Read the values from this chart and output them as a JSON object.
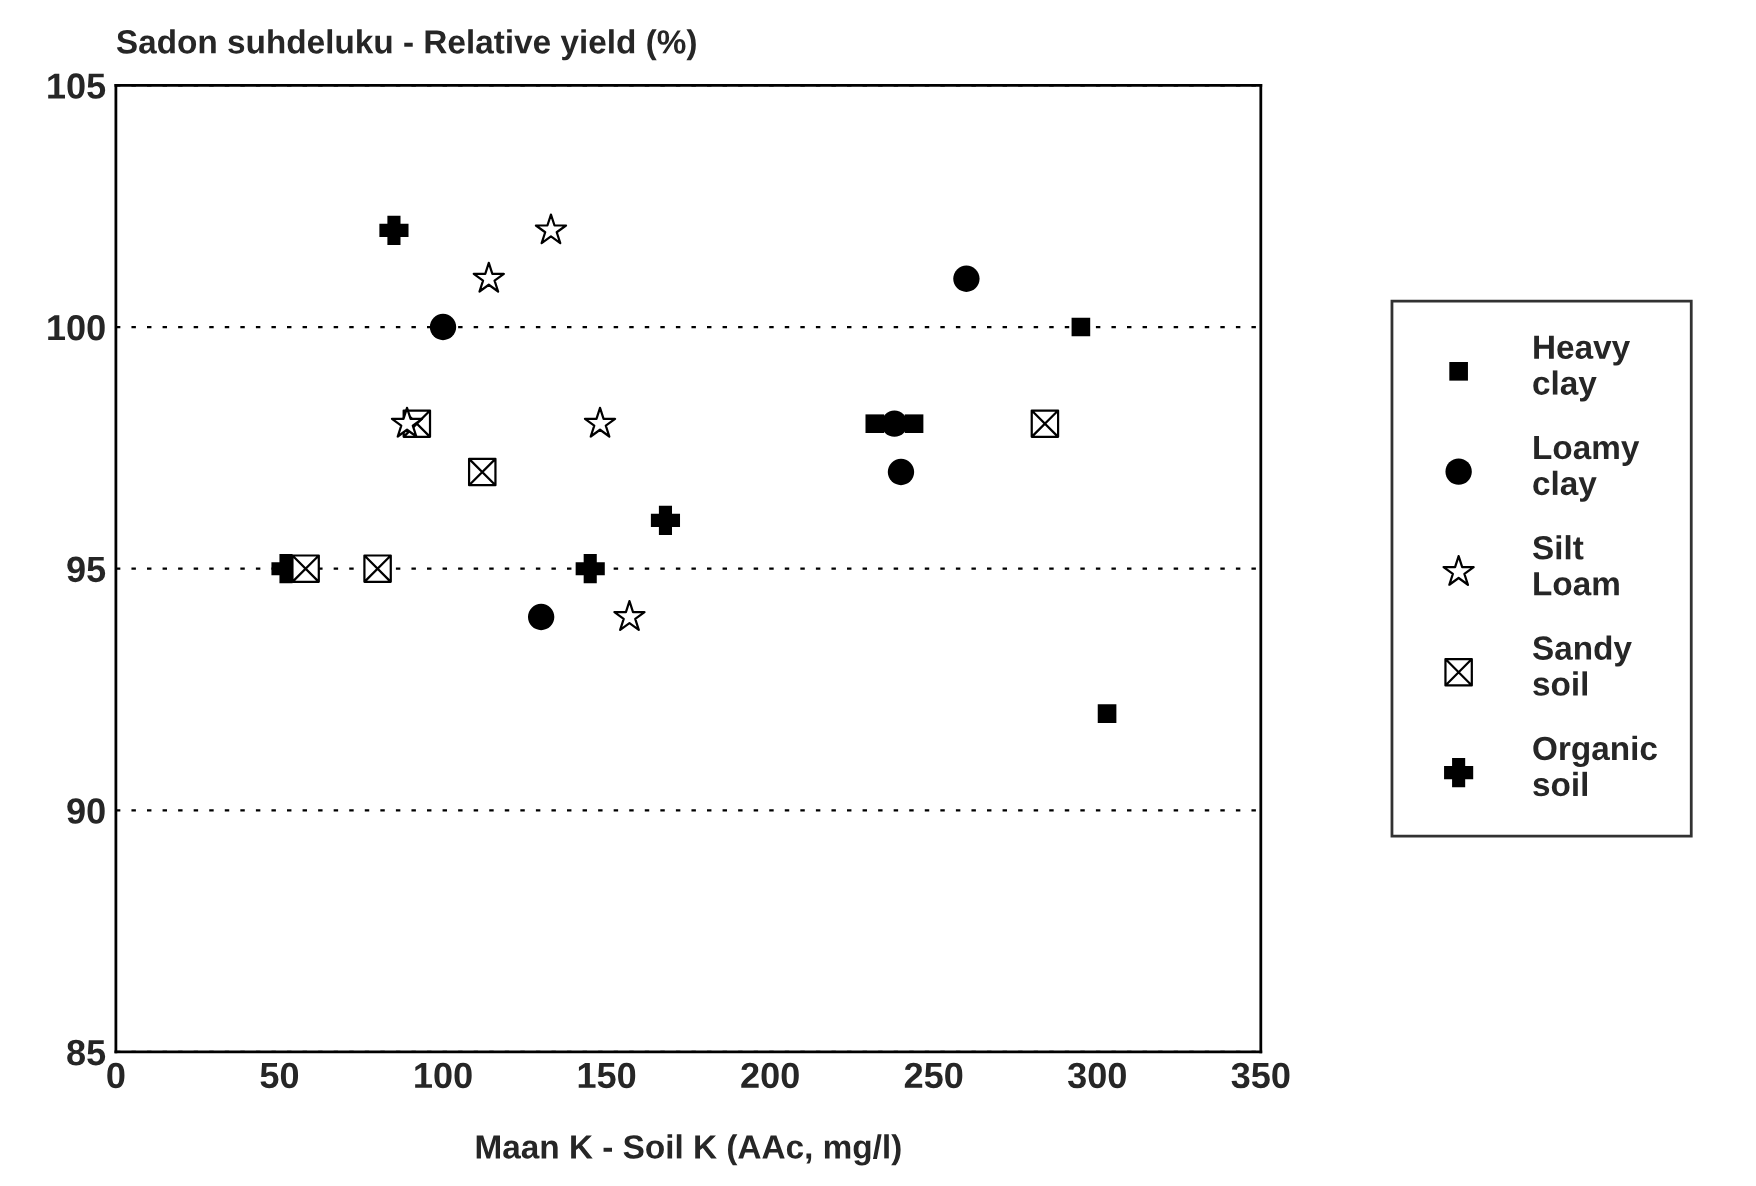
{
  "chart_data": {
    "type": "scatter",
    "title": "Sadon suhdeluku - Relative yield (%)",
    "xlabel": "Maan K - Soil K (AAc, mg/l)",
    "xlim": [
      0,
      350
    ],
    "xticks": [
      0,
      50,
      100,
      150,
      200,
      250,
      300,
      350
    ],
    "ylim": [
      85,
      105
    ],
    "yticks": [
      85,
      90,
      95,
      100,
      105
    ],
    "grid": "y",
    "legend": "right",
    "series": [
      {
        "name": "Heavy clay",
        "color": "#000000",
        "marker": "square",
        "x": [
          232,
          244,
          295,
          303
        ],
        "values": [
          98,
          98,
          100,
          92
        ]
      },
      {
        "name": "Loamy clay",
        "color": "#000000",
        "marker": "circle",
        "x": [
          260,
          238,
          240,
          100,
          130
        ],
        "values": [
          101,
          98,
          97,
          100,
          94
        ]
      },
      {
        "name": "Silt Loam",
        "color": "#000000",
        "marker": "star",
        "x": [
          133,
          114,
          89,
          148,
          157
        ],
        "values": [
          102,
          101,
          98,
          98,
          94
        ]
      },
      {
        "name": "Sandy soil",
        "color": "#000000",
        "marker": "cross",
        "x": [
          92,
          112,
          58,
          80,
          284
        ],
        "values": [
          98,
          97,
          95,
          95,
          98
        ]
      },
      {
        "name": "Organic soil",
        "color": "#000000",
        "marker": "plus",
        "x": [
          85,
          52,
          145,
          168
        ],
        "values": [
          102,
          95,
          95,
          96
        ]
      }
    ]
  }
}
